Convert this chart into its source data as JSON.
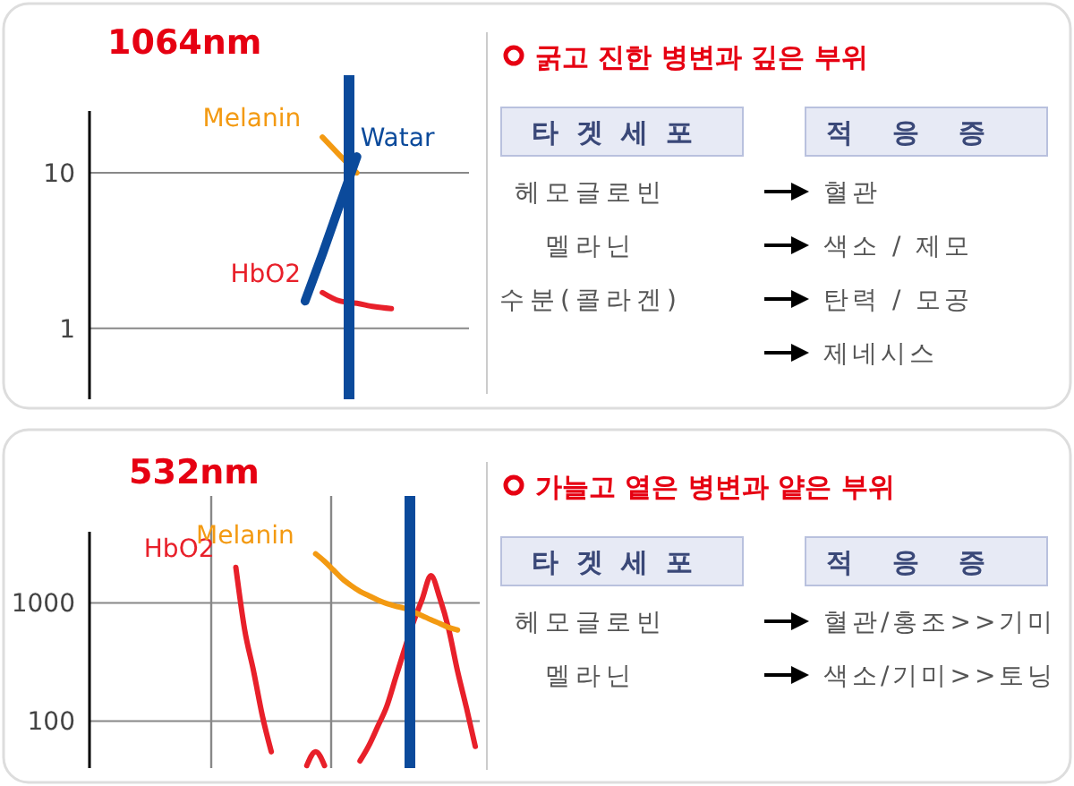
{
  "chart_data": [
    {
      "type": "line",
      "title": "1064nm",
      "categories": [
        null,
        null,
        null,
        null,
        null,
        null,
        null,
        null,
        null,
        null,
        null,
        null,
        null,
        null,
        null,
        null,
        null,
        null,
        null,
        null,
        null,
        null
      ],
      "series": [
        {
          "name": "Melanin",
          "color": "#f39a12",
          "values": [
            null,
            null,
            null,
            null,
            null,
            null,
            null,
            null,
            null,
            null,
            null,
            null,
            null,
            17,
            13,
            10,
            null,
            null,
            null,
            null,
            null,
            null
          ]
        },
        {
          "name": "Watar",
          "color": "#0b4a9b",
          "values": [
            null,
            null,
            null,
            null,
            null,
            null,
            null,
            null,
            null,
            null,
            null,
            null,
            1.5,
            3,
            6.2,
            12.7,
            null,
            null,
            null,
            null,
            null,
            null
          ]
        },
        {
          "name": "HbO2",
          "color": "#e8202a",
          "values": [
            null,
            null,
            null,
            null,
            null,
            null,
            null,
            null,
            null,
            null,
            null,
            null,
            null,
            1.7,
            1.5,
            1.45,
            1.38,
            1.34,
            null,
            null,
            null,
            null
          ]
        }
      ],
      "log": true,
      "ylim": [
        0.35,
        25
      ],
      "yticks": [
        1,
        10
      ],
      "grid": "y"
    },
    {
      "type": "other",
      "title": "굵고 진한 병변과 깊은 부위",
      "categories": [
        "타겟세포",
        "적응증"
      ],
      "y_categories": [
        "헤모글로빈",
        "멜라닌",
        "수분(콜라겐)"
      ],
      "annotations": [
        "혈관",
        "색소 / 제모",
        "탄력 / 모공",
        "제네시스"
      ]
    },
    {
      "type": "line",
      "title": "532nm",
      "categories": [
        null,
        null,
        null,
        null,
        null,
        null,
        null,
        null,
        null,
        null,
        null,
        null,
        null,
        null,
        null,
        null,
        null,
        null,
        null,
        null,
        null,
        null,
        null,
        null,
        null,
        null,
        null,
        null,
        null,
        null,
        null,
        null,
        null,
        null,
        null,
        null,
        null,
        null,
        null,
        null,
        null,
        null,
        null,
        null
      ],
      "series": [
        {
          "name": "HbO2",
          "color": "#e8202a",
          "values": [
            null,
            null,
            null,
            null,
            null,
            null,
            null,
            null,
            null,
            null,
            null,
            null,
            null,
            null,
            null,
            null,
            2000,
            590,
            265,
            110,
            55,
            null,
            null,
            null,
            42,
            55,
            42,
            null,
            null,
            null,
            46,
            62,
            90,
            132,
            230,
            400,
            680,
            1070,
            1700,
            1100,
            600,
            265,
            130,
            61
          ]
        },
        {
          "name": "Melanin",
          "color": "#f39a12",
          "values": [
            null,
            null,
            null,
            null,
            null,
            null,
            null,
            null,
            null,
            null,
            null,
            null,
            null,
            null,
            null,
            null,
            null,
            null,
            null,
            null,
            null,
            null,
            null,
            null,
            null,
            2600,
            2250,
            1900,
            1600,
            1400,
            1250,
            1150,
            1060,
            990,
            940,
            900,
            840,
            780,
            720,
            670,
            620,
            590,
            null,
            null
          ]
        }
      ],
      "log": true,
      "ylim": [
        40,
        4000
      ],
      "yticks": [
        100,
        1000
      ],
      "grid": "y"
    },
    {
      "type": "other",
      "title": "가늘고 옅은 병변과 얕은 부위",
      "categories": [
        "타겟세포",
        "적응증"
      ],
      "y_categories": [
        "헤모글로빈",
        "멜라닌"
      ],
      "annotations": [
        "혈관/홍조>>기미",
        "색소/기미>>토닝"
      ]
    }
  ]
}
